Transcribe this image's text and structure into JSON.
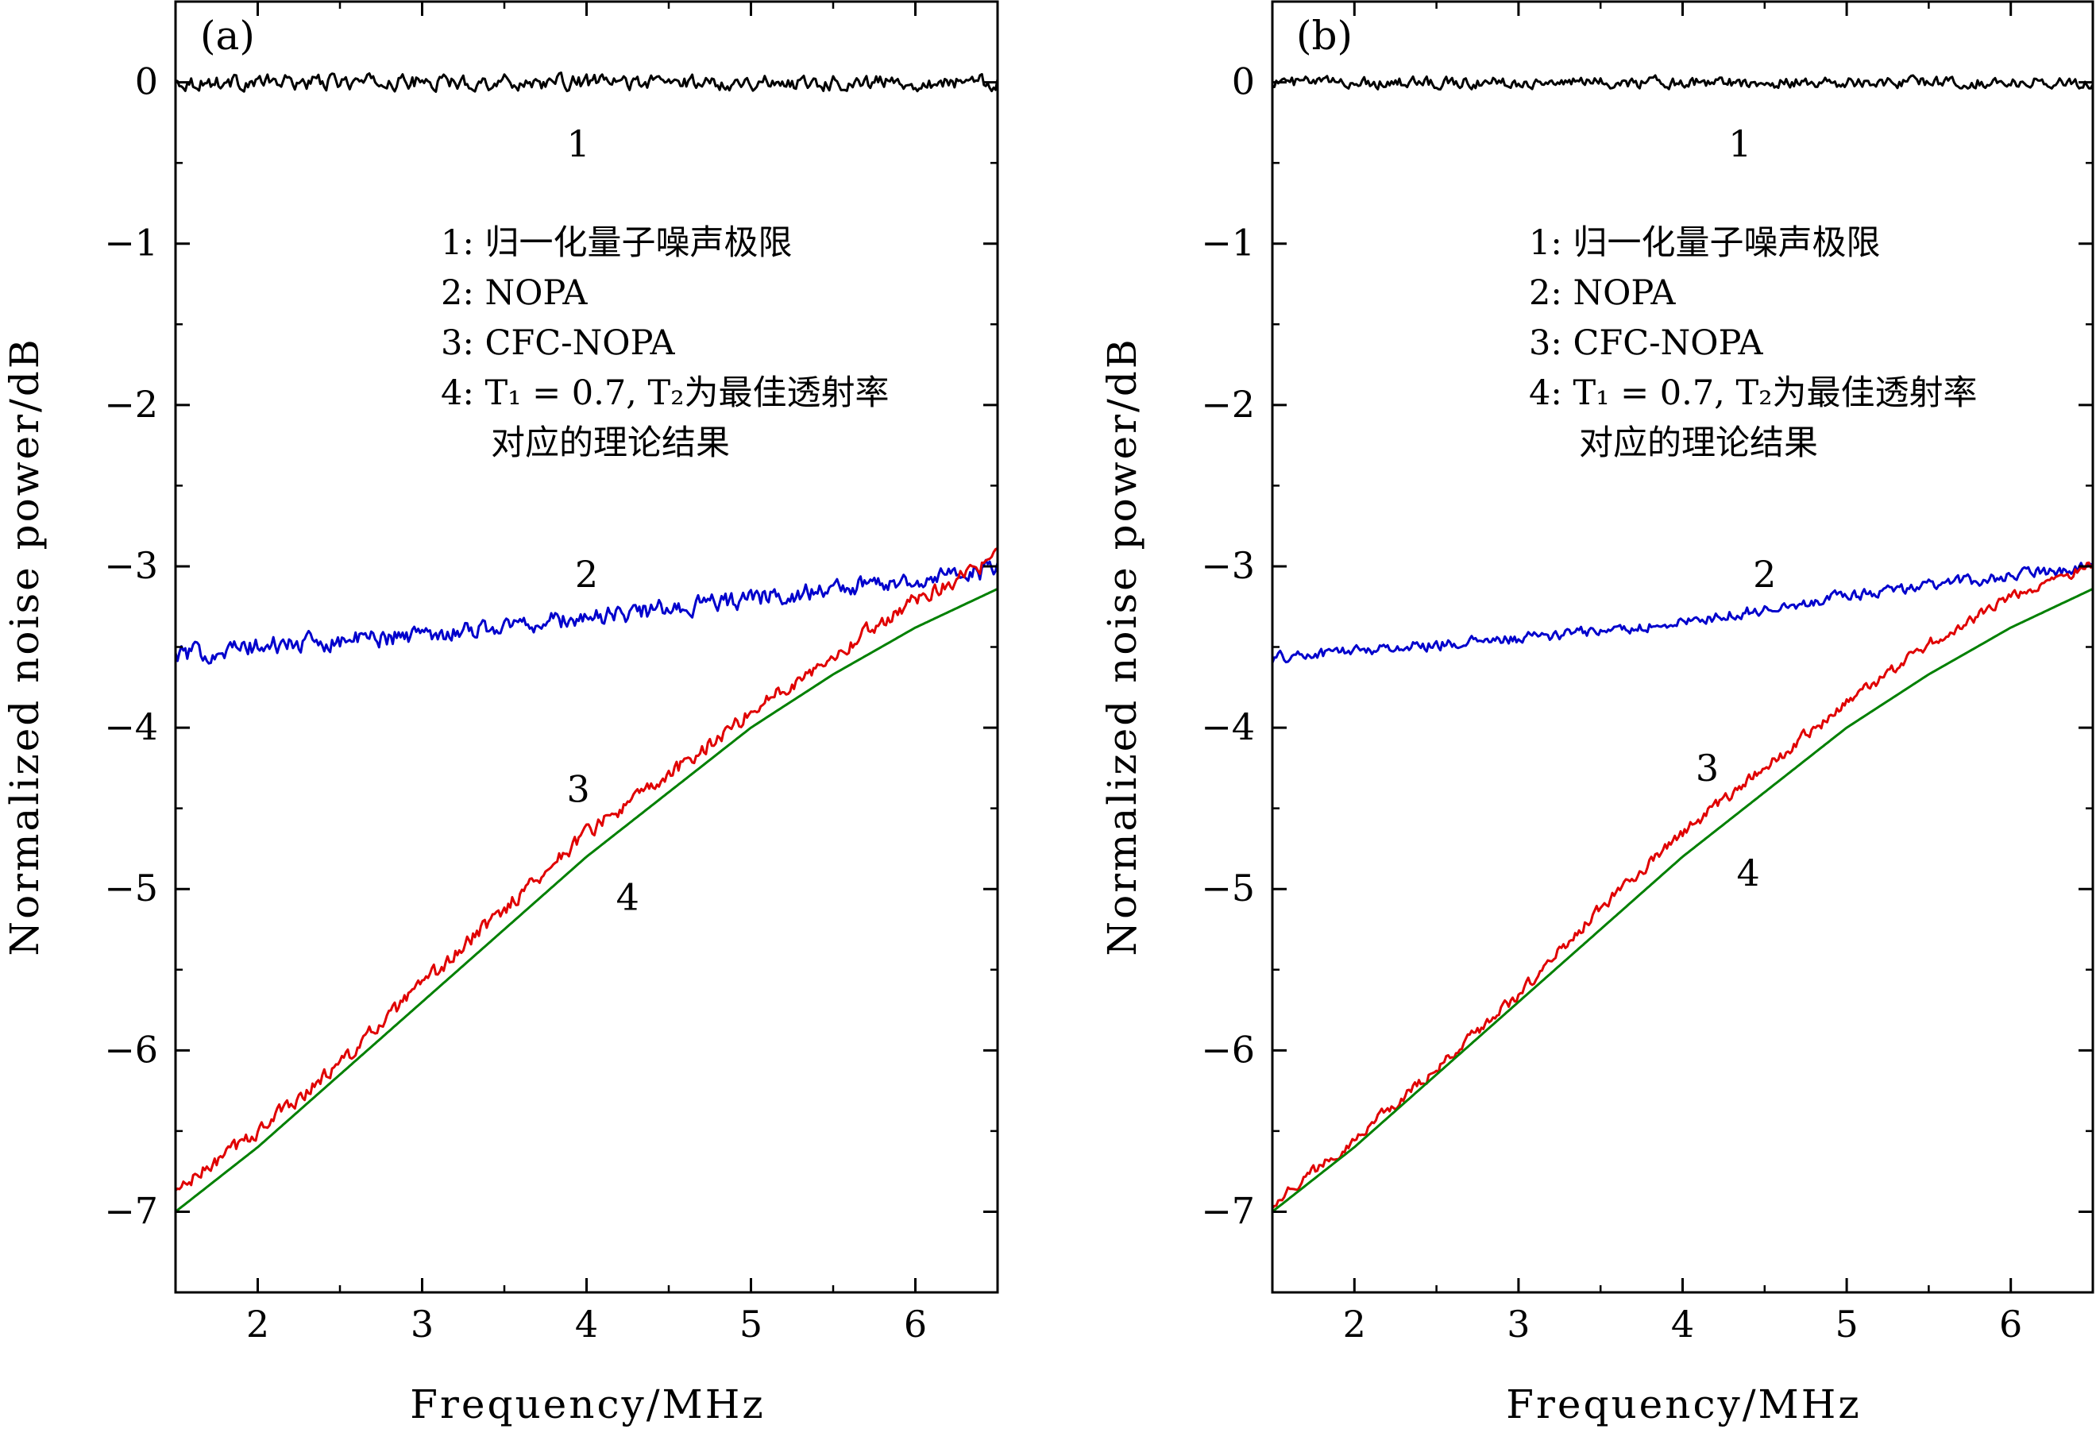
{
  "chart_data": [
    {
      "type": "line",
      "panel_label": "(a)",
      "xlabel": "Frequency/MHz",
      "ylabel": "Normalized noise power/dB",
      "xlim": [
        1.5,
        6.5
      ],
      "ylim": [
        -7.5,
        0.5
      ],
      "xticks": [
        2,
        3,
        4,
        5,
        6
      ],
      "yticks": [
        0,
        -1,
        -2,
        -3,
        -4,
        -5,
        -6,
        -7
      ],
      "x_tick_labels": [
        "2",
        "3",
        "4",
        "5",
        "6"
      ],
      "y_tick_labels": [
        "0",
        "−1",
        "−2",
        "−3",
        "−4",
        "−5",
        "−6",
        "−7"
      ],
      "grid": false,
      "legend": [
        "1: 归一化量子噪声极限",
        "2: NOPA",
        "3: CFC-NOPA",
        "4: T₁ = 0.7, T₂为最佳透射率",
        "对应的理论结果"
      ],
      "series": [
        {
          "name": "1",
          "color": "#000000",
          "noise": 0.04,
          "x": [
            1.5,
            6.5
          ],
          "y": [
            0.0,
            0.0
          ]
        },
        {
          "name": "2",
          "color": "#0000cc",
          "noise": 0.05,
          "x": [
            1.5,
            2.0,
            3.0,
            4.0,
            5.0,
            6.0,
            6.5
          ],
          "y": [
            -3.55,
            -3.5,
            -3.42,
            -3.32,
            -3.2,
            -3.08,
            -3.02
          ]
        },
        {
          "name": "3",
          "color": "#e00000",
          "noise": 0.04,
          "x": [
            1.5,
            2.0,
            2.5,
            3.0,
            3.5,
            4.0,
            4.5,
            5.0,
            5.5,
            6.0,
            6.5
          ],
          "y": [
            -6.88,
            -6.5,
            -6.08,
            -5.6,
            -5.12,
            -4.65,
            -4.3,
            -3.9,
            -3.55,
            -3.2,
            -2.95
          ]
        },
        {
          "name": "4",
          "color": "#008000",
          "noise": 0,
          "x": [
            1.5,
            2.0,
            2.5,
            3.0,
            3.5,
            4.0,
            4.5,
            5.0,
            5.5,
            6.0,
            6.5
          ],
          "y": [
            -7.0,
            -6.6,
            -6.15,
            -5.7,
            -5.25,
            -4.8,
            -4.4,
            -4.0,
            -3.67,
            -3.38,
            -3.14
          ]
        }
      ],
      "curve_labels": [
        {
          "text": "1",
          "x": 3.95,
          "y": -0.38
        },
        {
          "text": "2",
          "x": 4.0,
          "y": -3.05
        },
        {
          "text": "3",
          "x": 3.95,
          "y": -4.38
        },
        {
          "text": "4",
          "x": 4.25,
          "y": -5.05
        }
      ]
    },
    {
      "type": "line",
      "panel_label": "(b)",
      "xlabel": "Frequency/MHz",
      "ylabel": "Normalized noise power/dB",
      "xlim": [
        1.5,
        6.5
      ],
      "ylim": [
        -7.5,
        0.5
      ],
      "xticks": [
        2,
        3,
        4,
        5,
        6
      ],
      "yticks": [
        0,
        -1,
        -2,
        -3,
        -4,
        -5,
        -6,
        -7
      ],
      "x_tick_labels": [
        "2",
        "3",
        "4",
        "5",
        "6"
      ],
      "y_tick_labels": [
        "0",
        "−1",
        "−2",
        "−3",
        "−4",
        "−5",
        "−6",
        "−7"
      ],
      "grid": false,
      "legend": [
        "1: 归一化量子噪声极限",
        "2: NOPA",
        "3: CFC-NOPA",
        "4: T₁ = 0.7, T₂为最佳透射率",
        "对应的理论结果"
      ],
      "series": [
        {
          "name": "1",
          "color": "#000000",
          "noise": 0.03,
          "x": [
            1.5,
            6.5
          ],
          "y": [
            0.0,
            0.0
          ]
        },
        {
          "name": "2",
          "color": "#0000cc",
          "noise": 0.03,
          "x": [
            1.5,
            2.0,
            3.0,
            4.0,
            5.0,
            6.0,
            6.5
          ],
          "y": [
            -3.57,
            -3.52,
            -3.45,
            -3.35,
            -3.18,
            -3.06,
            -3.0
          ]
        },
        {
          "name": "3",
          "color": "#e00000",
          "noise": 0.03,
          "x": [
            1.5,
            2.0,
            2.5,
            3.0,
            3.5,
            4.0,
            4.5,
            5.0,
            5.5,
            6.0,
            6.5
          ],
          "y": [
            -6.95,
            -6.55,
            -6.12,
            -5.65,
            -5.12,
            -4.65,
            -4.25,
            -3.85,
            -3.48,
            -3.2,
            -2.98
          ]
        },
        {
          "name": "4",
          "color": "#008000",
          "noise": 0,
          "x": [
            1.5,
            2.0,
            2.5,
            3.0,
            3.5,
            4.0,
            4.5,
            5.0,
            5.5,
            6.0,
            6.5
          ],
          "y": [
            -7.0,
            -6.6,
            -6.15,
            -5.7,
            -5.25,
            -4.8,
            -4.4,
            -4.0,
            -3.67,
            -3.38,
            -3.14
          ]
        }
      ],
      "curve_labels": [
        {
          "text": "1",
          "x": 4.35,
          "y": -0.38
        },
        {
          "text": "2",
          "x": 4.5,
          "y": -3.05
        },
        {
          "text": "3",
          "x": 4.15,
          "y": -4.25
        },
        {
          "text": "4",
          "x": 4.4,
          "y": -4.9
        }
      ]
    }
  ]
}
